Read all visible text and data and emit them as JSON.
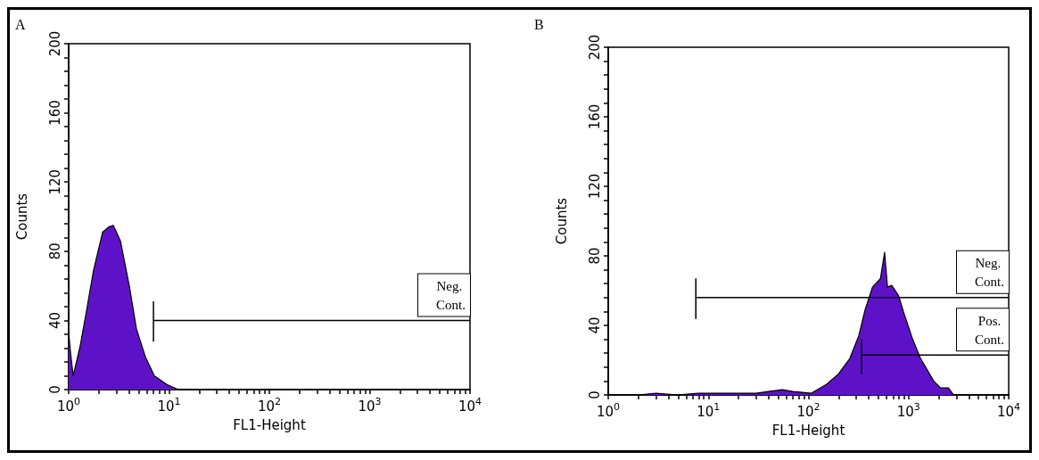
{
  "chart_data": [
    {
      "type": "area",
      "title": "A",
      "xlabel": "FL1-Height",
      "ylabel": "Counts",
      "log": "x",
      "marker": "none",
      "xlim": [
        1,
        10000
      ],
      "ylim": [
        0,
        200
      ],
      "xticks": [
        {
          "value": 1,
          "label": "10$^{0}$"
        },
        {
          "value": 2,
          "label": null
        },
        {
          "value": 3,
          "label": null
        },
        {
          "value": 4,
          "label": null
        },
        {
          "value": 5,
          "label": null
        },
        {
          "value": 6,
          "label": null
        },
        {
          "value": 7,
          "label": null
        },
        {
          "value": 8,
          "label": null
        },
        {
          "value": 9,
          "label": null
        },
        {
          "value": 10,
          "label": "10$^{1}$"
        },
        {
          "value": 20,
          "label": null
        },
        {
          "value": 30,
          "label": null
        },
        {
          "value": 40,
          "label": null
        },
        {
          "value": 50,
          "label": null
        },
        {
          "value": 60,
          "label": null
        },
        {
          "value": 70,
          "label": null
        },
        {
          "value": 80,
          "label": null
        },
        {
          "value": 90,
          "label": null
        },
        {
          "value": 100,
          "label": "10$^{2}$"
        },
        {
          "value": 200,
          "label": null
        },
        {
          "value": 300,
          "label": null
        },
        {
          "value": 400,
          "label": null
        },
        {
          "value": 500,
          "label": null
        },
        {
          "value": 600,
          "label": null
        },
        {
          "value": 700,
          "label": null
        },
        {
          "value": 800,
          "label": null
        },
        {
          "value": 900,
          "label": null
        },
        {
          "value": 1000,
          "label": "10$^{3}$"
        },
        {
          "value": 2000,
          "label": null
        },
        {
          "value": 3000,
          "label": null
        },
        {
          "value": 4000,
          "label": null
        },
        {
          "value": 5000,
          "label": null
        },
        {
          "value": 6000,
          "label": null
        },
        {
          "value": 7000,
          "label": null
        },
        {
          "value": 8000,
          "label": null
        },
        {
          "value": 9000,
          "label": null
        },
        {
          "value": 10000,
          "label": "10$^{4}$"
        }
      ],
      "yticks": [
        0,
        {
          "value": 8,
          "label": null
        },
        {
          "value": 16,
          "label": null
        },
        {
          "value": 24,
          "label": null
        },
        {
          "value": 32,
          "label": null
        },
        40,
        {
          "value": 48,
          "label": null
        },
        {
          "value": 56,
          "label": null
        },
        {
          "value": 64,
          "label": null
        },
        {
          "value": 72,
          "label": null
        },
        80,
        {
          "value": 88,
          "label": null
        },
        {
          "value": 96,
          "label": null
        },
        {
          "value": 104,
          "label": null
        },
        {
          "value": 112,
          "label": null
        },
        120,
        {
          "value": 128,
          "label": null
        },
        {
          "value": 136,
          "label": null
        },
        {
          "value": 144,
          "label": null
        },
        {
          "value": 152,
          "label": null
        },
        160,
        {
          "value": 168,
          "label": null
        },
        {
          "value": 176,
          "label": null
        },
        {
          "value": 184,
          "label": null
        },
        {
          "value": 192,
          "label": null
        },
        200
      ],
      "series": [
        {
          "color": "#5e12c8",
          "x": [
            1,
            1.05,
            1.11,
            1.3,
            1.51,
            1.77,
            2.18,
            2.5,
            2.78,
            3.28,
            4.02,
            4.74,
            5.81,
            7.13,
            9.5,
            12.4,
            10000
          ],
          "values": [
            33,
            20,
            8,
            25,
            46,
            69,
            91,
            94,
            95,
            86,
            60,
            35,
            19,
            8,
            3,
            0,
            0
          ]
        },
        {
          "type": "line",
          "name": "Neg. Cont.",
          "color": "#000000",
          "x": [
            7,
            7,
            7,
            10000
          ],
          "values": [
            51,
            28,
            40,
            40
          ]
        }
      ]
    },
    {
      "type": "area",
      "title": "B",
      "xlabel": "FL1-Height",
      "ylabel": "Counts",
      "log": "x",
      "marker": "none",
      "xlim": [
        1,
        10000
      ],
      "ylim": [
        0,
        200
      ],
      "xticks": [
        {
          "value": 1,
          "label": "10$^{0}$"
        },
        {
          "value": 2,
          "label": null
        },
        {
          "value": 3,
          "label": null
        },
        {
          "value": 4,
          "label": null
        },
        {
          "value": 5,
          "label": null
        },
        {
          "value": 6,
          "label": null
        },
        {
          "value": 7,
          "label": null
        },
        {
          "value": 8,
          "label": null
        },
        {
          "value": 9,
          "label": null
        },
        {
          "value": 10,
          "label": "10$^{1}$"
        },
        {
          "value": 20,
          "label": null
        },
        {
          "value": 30,
          "label": null
        },
        {
          "value": 40,
          "label": null
        },
        {
          "value": 50,
          "label": null
        },
        {
          "value": 60,
          "label": null
        },
        {
          "value": 70,
          "label": null
        },
        {
          "value": 80,
          "label": null
        },
        {
          "value": 90,
          "label": null
        },
        {
          "value": 100,
          "label": "10$^{2}$"
        },
        {
          "value": 200,
          "label": null
        },
        {
          "value": 300,
          "label": null
        },
        {
          "value": 400,
          "label": null
        },
        {
          "value": 500,
          "label": null
        },
        {
          "value": 600,
          "label": null
        },
        {
          "value": 700,
          "label": null
        },
        {
          "value": 800,
          "label": null
        },
        {
          "value": 900,
          "label": null
        },
        {
          "value": 1000,
          "label": "10$^{3}$"
        },
        {
          "value": 2000,
          "label": null
        },
        {
          "value": 3000,
          "label": null
        },
        {
          "value": 4000,
          "label": null
        },
        {
          "value": 5000,
          "label": null
        },
        {
          "value": 6000,
          "label": null
        },
        {
          "value": 7000,
          "label": null
        },
        {
          "value": 8000,
          "label": null
        },
        {
          "value": 9000,
          "label": null
        },
        {
          "value": 10000,
          "label": "10$^{4}$"
        }
      ],
      "yticks": [
        0,
        {
          "value": 8,
          "label": null
        },
        {
          "value": 16,
          "label": null
        },
        {
          "value": 24,
          "label": null
        },
        {
          "value": 32,
          "label": null
        },
        40,
        {
          "value": 48,
          "label": null
        },
        {
          "value": 56,
          "label": null
        },
        {
          "value": 64,
          "label": null
        },
        {
          "value": 72,
          "label": null
        },
        80,
        {
          "value": 88,
          "label": null
        },
        {
          "value": 96,
          "label": null
        },
        {
          "value": 104,
          "label": null
        },
        {
          "value": 112,
          "label": null
        },
        120,
        {
          "value": 128,
          "label": null
        },
        {
          "value": 136,
          "label": null
        },
        {
          "value": 144,
          "label": null
        },
        {
          "value": 152,
          "label": null
        },
        160,
        {
          "value": 168,
          "label": null
        },
        {
          "value": 176,
          "label": null
        },
        {
          "value": 184,
          "label": null
        },
        {
          "value": 192,
          "label": null
        },
        200
      ],
      "series": [
        {
          "color": "#5e12c8",
          "x": [
            1,
            2,
            3,
            5,
            8,
            12,
            20,
            30,
            40,
            54.6,
            70,
            107,
            151,
            199,
            259,
            318,
            368,
            436,
            524,
            576,
            616,
            679,
            796,
            888,
            1098,
            1317,
            1480,
            1780,
            2090,
            2500,
            2820,
            10000
          ],
          "values": [
            0,
            0,
            1,
            0,
            1,
            1,
            1,
            1,
            2,
            3,
            2,
            1,
            6,
            12,
            21,
            34,
            49,
            62,
            67,
            82,
            62,
            63,
            57,
            48,
            32,
            21,
            16,
            8,
            4,
            4,
            0,
            0
          ]
        },
        {
          "type": "line",
          "name": "Neg. Cont.",
          "color": "#000000",
          "x": [
            7.5,
            7.5,
            7.5,
            10000
          ],
          "values": [
            67,
            44,
            56,
            56
          ]
        },
        {
          "type": "line",
          "name": "Pos. Cont.",
          "color": "#000000",
          "x": [
            339,
            339,
            339,
            10000
          ],
          "values": [
            32,
            12,
            23,
            23
          ]
        }
      ]
    }
  ]
}
